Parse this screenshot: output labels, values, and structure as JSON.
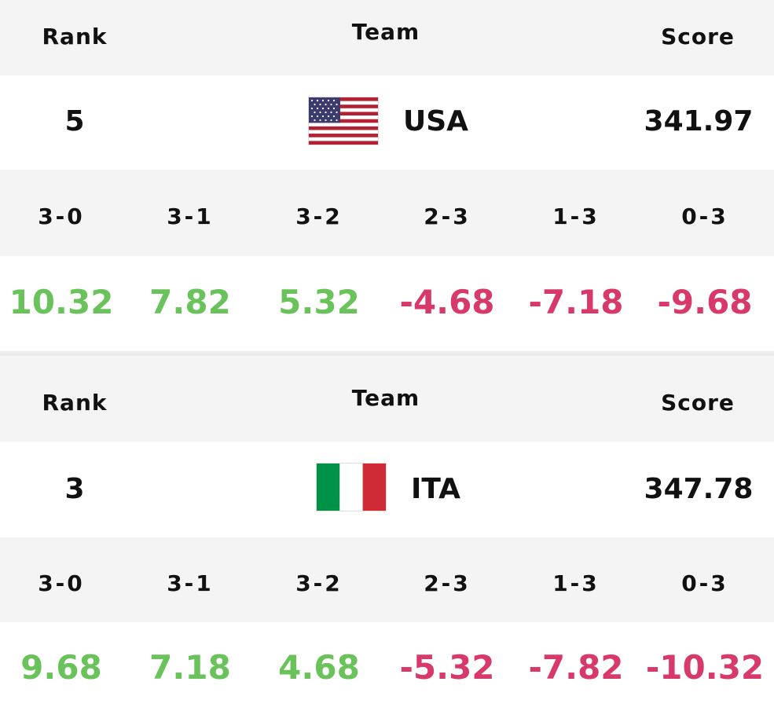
{
  "header": {
    "rank_label": "Rank",
    "team_label": "Team",
    "score_label": "Score"
  },
  "teams": [
    {
      "rank": "5",
      "code": "USA",
      "score": "341.97",
      "flag_icon": "usa-flag-icon",
      "result_labels": [
        "3-0",
        "3-1",
        "3-2",
        "2-3",
        "1-3",
        "0-3"
      ],
      "result_values": [
        "10.32",
        "7.82",
        "5.32",
        "-4.68",
        "-7.18",
        "-9.68"
      ]
    },
    {
      "rank": "3",
      "code": "ITA",
      "score": "347.78",
      "flag_icon": "italy-flag-icon",
      "result_labels": [
        "3-0",
        "3-1",
        "3-2",
        "2-3",
        "1-3",
        "0-3"
      ],
      "result_values": [
        "9.68",
        "7.18",
        "4.68",
        "-5.32",
        "-7.82",
        "-10.32"
      ]
    }
  ],
  "colors": {
    "positive": "#6ac35a",
    "negative": "#d8396b",
    "header_bg": "#f4f4f4",
    "usa_red": "#b22234",
    "usa_blue": "#3c3b6e",
    "italy_green": "#009246",
    "italy_red": "#ce2b37"
  }
}
